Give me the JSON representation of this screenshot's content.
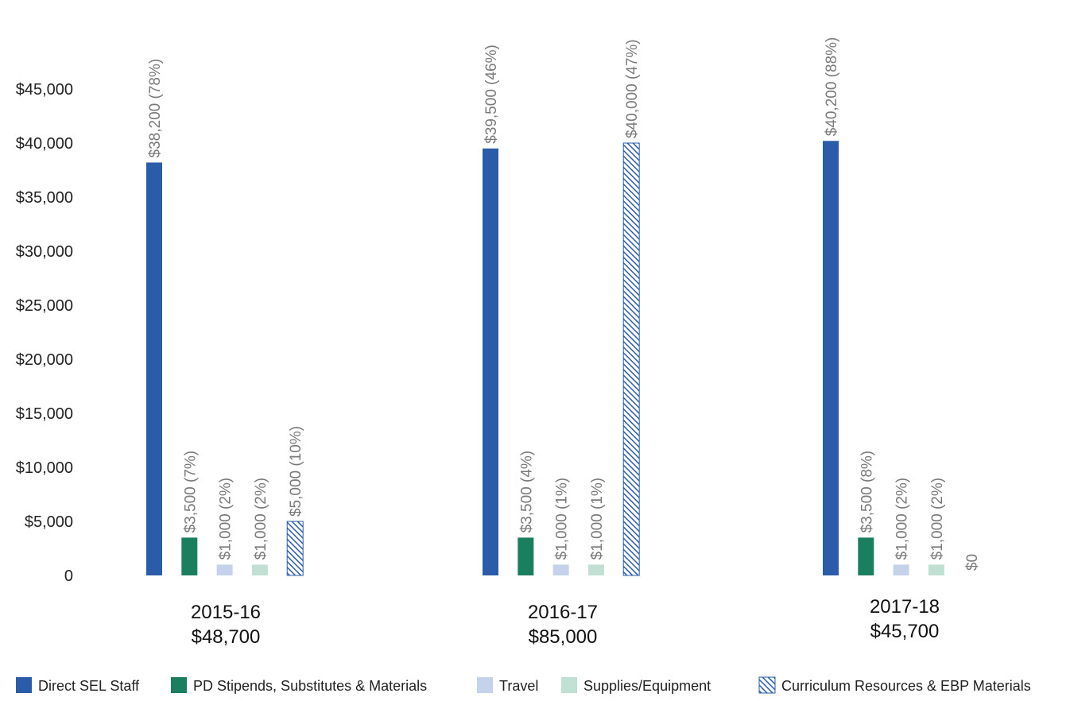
{
  "chart_data": {
    "type": "bar",
    "title": "",
    "xlabel": "",
    "ylabel": "",
    "ylim": [
      0,
      45000
    ],
    "yticks": [
      {
        "value": 0,
        "label": "0"
      },
      {
        "value": 5000,
        "label": "$5,000"
      },
      {
        "value": 10000,
        "label": "$10,000"
      },
      {
        "value": 15000,
        "label": "$15,000"
      },
      {
        "value": 20000,
        "label": "$20,000"
      },
      {
        "value": 25000,
        "label": "$25,000"
      },
      {
        "value": 30000,
        "label": "$30,000"
      },
      {
        "value": 35000,
        "label": "$35,000"
      },
      {
        "value": 40000,
        "label": "$40,000"
      },
      {
        "value": 45000,
        "label": "$45,000"
      }
    ],
    "grid": false,
    "legend_position": "bottom",
    "categories": [
      {
        "year": "2015-16",
        "total": "$48,700"
      },
      {
        "year": "2016-17",
        "total": "$85,000"
      },
      {
        "year": "2017-18",
        "total": "$45,700"
      }
    ],
    "series": [
      {
        "name": "Direct SEL Staff",
        "color": "#2a5caa",
        "pattern": "solid",
        "values": [
          38200,
          39500,
          40200
        ],
        "labels": [
          "$38,200 (78%)",
          "$39,500 (46%)",
          "$40,200 (88%)"
        ]
      },
      {
        "name": "PD Stipends, Substitutes & Materials",
        "color": "#1a7f5e",
        "pattern": "solid",
        "values": [
          3500,
          3500,
          3500
        ],
        "labels": [
          "$3,500 (7%)",
          "$3,500 (4%)",
          "$3,500 (8%)"
        ]
      },
      {
        "name": "Travel",
        "color": "#c5d3ea",
        "pattern": "solid",
        "values": [
          1000,
          1000,
          1000
        ],
        "labels": [
          "$1,000 (2%)",
          "$1,000 (1%)",
          "$1,000 (2%)"
        ]
      },
      {
        "name": "Supplies/Equipment",
        "color": "#bfe0d3",
        "pattern": "solid",
        "values": [
          1000,
          1000,
          1000
        ],
        "labels": [
          "$1,000 (2%)",
          "$1,000 (1%)",
          "$1,000 (2%)"
        ]
      },
      {
        "name": "Curriculum Resources & EBP Materials",
        "color": "#2a5caa",
        "pattern": "hatch",
        "values": [
          5000,
          40000,
          0
        ],
        "labels": [
          "$5,000 (10%)",
          "$40,000 (47%)",
          "$0"
        ]
      }
    ],
    "label_color": "#7a7a7a",
    "axis_text_color": "#222222"
  }
}
